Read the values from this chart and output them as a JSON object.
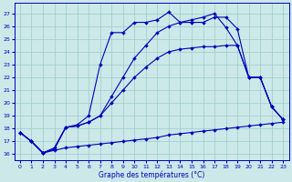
{
  "background_color": "#cce8e8",
  "grid_color": "#99cccc",
  "line_color": "#0000bb",
  "xlabel": "Graphe des températures (°C)",
  "ylim": [
    15.5,
    27.8
  ],
  "xlim": [
    -0.5,
    23.5
  ],
  "yticks": [
    16,
    17,
    18,
    19,
    20,
    21,
    22,
    23,
    24,
    25,
    26,
    27
  ],
  "xticks": [
    0,
    1,
    2,
    3,
    4,
    5,
    6,
    7,
    8,
    9,
    10,
    11,
    12,
    13,
    14,
    15,
    16,
    17,
    18,
    19,
    20,
    21,
    22,
    23
  ],
  "curve_A": {
    "x": [
      0,
      1,
      2,
      3,
      4,
      5,
      6,
      7,
      8,
      9,
      10,
      11,
      12,
      13,
      14,
      15,
      16,
      17,
      18,
      19,
      20,
      21,
      22,
      23
    ],
    "y": [
      17.7,
      17.0,
      16.1,
      16.5,
      18.1,
      18.3,
      19.0,
      23.0,
      25.5,
      25.5,
      26.3,
      26.3,
      26.5,
      27.1,
      26.3,
      26.3,
      26.3,
      26.7,
      26.7,
      25.8,
      22.0,
      22.0,
      19.7,
      18.7
    ]
  },
  "curve_B": {
    "x": [
      0,
      1,
      2,
      3,
      4,
      5,
      6,
      7,
      8,
      9,
      10,
      11,
      12,
      13,
      14,
      15,
      16,
      17,
      18,
      19,
      20,
      21,
      22,
      23
    ],
    "y": [
      17.7,
      17.0,
      16.1,
      16.4,
      18.1,
      18.2,
      18.5,
      19.0,
      20.5,
      22.0,
      23.5,
      24.5,
      25.5,
      26.0,
      26.3,
      26.5,
      26.7,
      27.0,
      25.9,
      24.5,
      22.0,
      22.0,
      19.7,
      18.7
    ]
  },
  "curve_C": {
    "x": [
      0,
      1,
      2,
      3,
      4,
      5,
      6,
      7,
      8,
      9,
      10,
      11,
      12,
      13,
      14,
      15,
      16,
      17,
      18,
      19,
      20,
      21,
      22,
      23
    ],
    "y": [
      17.7,
      17.0,
      16.1,
      16.4,
      18.1,
      18.2,
      18.5,
      19.0,
      20.0,
      21.0,
      22.0,
      22.8,
      23.5,
      24.0,
      24.2,
      24.3,
      24.4,
      24.4,
      24.5,
      24.5,
      22.0,
      22.0,
      19.7,
      18.7
    ]
  },
  "curve_D": {
    "x": [
      0,
      1,
      2,
      3,
      4,
      5,
      6,
      7,
      8,
      9,
      10,
      11,
      12,
      13,
      14,
      15,
      16,
      17,
      18,
      19,
      20,
      21,
      22,
      23
    ],
    "y": [
      17.7,
      17.0,
      16.1,
      16.3,
      16.5,
      16.6,
      16.7,
      16.8,
      16.9,
      17.0,
      17.1,
      17.2,
      17.3,
      17.5,
      17.6,
      17.7,
      17.8,
      17.9,
      18.0,
      18.1,
      18.2,
      18.3,
      18.4,
      18.5
    ]
  }
}
